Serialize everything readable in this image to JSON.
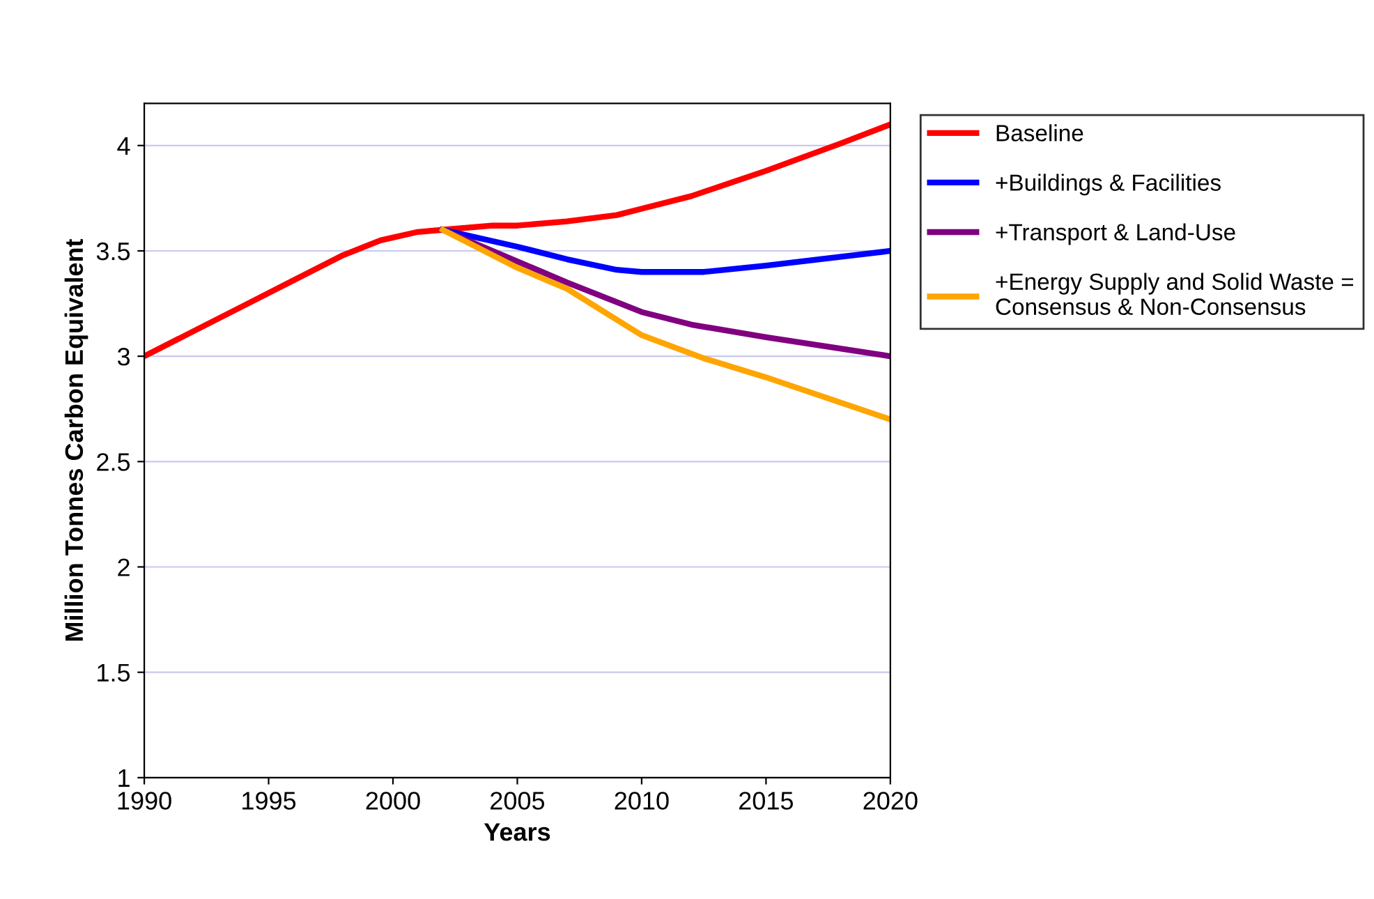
{
  "chart_data": {
    "type": "line",
    "xlabel": "Years",
    "ylabel": "Million Tonnes Carbon Equivalent",
    "xlim": [
      1990,
      2020
    ],
    "xticks": [
      1990,
      1995,
      2000,
      2005,
      2010,
      2015,
      2020
    ],
    "ylim": [
      1,
      4.2
    ],
    "yticks": [
      1,
      1.5,
      2,
      2.5,
      3,
      3.5,
      4
    ],
    "grid": "y",
    "legend": "top right",
    "marker": "none",
    "line_style": "solid",
    "series": [
      {
        "name": "Baseline",
        "color": "#ff0000",
        "x": [
          1990,
          1992,
          1994,
          1996,
          1998,
          1999.5,
          2001,
          2002,
          2004,
          2005,
          2007,
          2009,
          2010,
          2012,
          2015,
          2018,
          2020
        ],
        "values": [
          3.0,
          3.12,
          3.24,
          3.36,
          3.48,
          3.55,
          3.59,
          3.6,
          3.62,
          3.62,
          3.64,
          3.67,
          3.7,
          3.76,
          3.88,
          4.01,
          4.1
        ]
      },
      {
        "name": "+Buildings & Facilities",
        "color": "#0000ff",
        "x": [
          2002,
          2005,
          2007,
          2009,
          2010,
          2012.5,
          2015,
          2020
        ],
        "values": [
          3.6,
          3.52,
          3.46,
          3.41,
          3.4,
          3.4,
          3.43,
          3.5
        ]
      },
      {
        "name": "+Transport & Land-Use",
        "color": "#800080",
        "x": [
          2002,
          2005,
          2007,
          2010,
          2012,
          2015,
          2020
        ],
        "values": [
          3.6,
          3.45,
          3.35,
          3.21,
          3.15,
          3.09,
          3.0
        ]
      },
      {
        "name": "+Energy Supply and Solid Waste =\nConsensus & Non-Consensus",
        "color": "#ffa500",
        "x": [
          2002,
          2005,
          2007,
          2010,
          2012.5,
          2015,
          2020
        ],
        "values": [
          3.6,
          3.42,
          3.32,
          3.1,
          2.99,
          2.9,
          2.7
        ]
      }
    ]
  }
}
